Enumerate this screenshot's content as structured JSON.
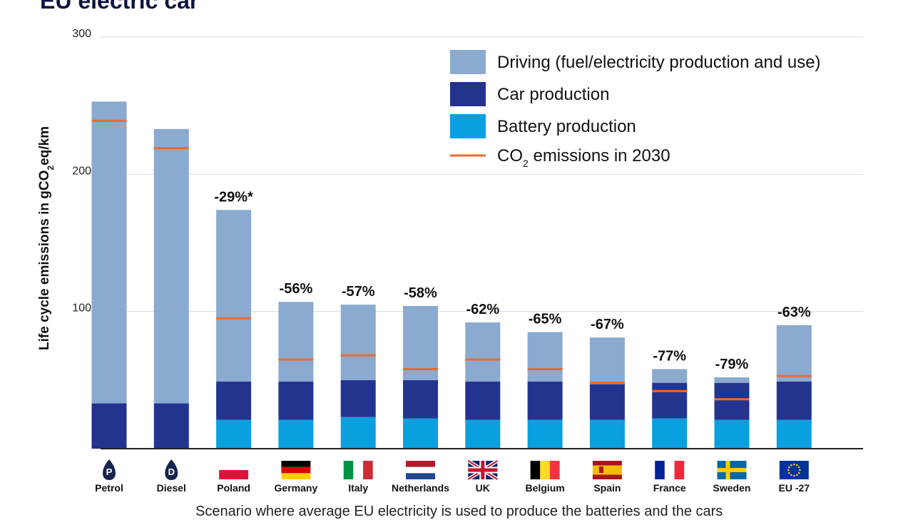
{
  "title": "EU electric car",
  "footnote": "Scenario where average EU electricity is used to produce the batteries and the cars",
  "colors": {
    "driving": "#8aaad0",
    "car_production": "#23348f",
    "battery_production": "#0aa0df",
    "co2_2030": "#ec6a2c",
    "grid": "#d3dbe8",
    "axis": "#222222"
  },
  "legend": [
    {
      "key": "driving",
      "label": "Driving (fuel/electricity production and use)",
      "type": "swatch"
    },
    {
      "key": "car_production",
      "label": "Car production",
      "type": "swatch"
    },
    {
      "key": "battery_production",
      "label": "Battery production",
      "type": "swatch"
    },
    {
      "key": "co2_2030",
      "label_parts": [
        "CO",
        "2",
        " emissions in 2030"
      ],
      "type": "line"
    }
  ],
  "chart_data": {
    "type": "bar",
    "stacked": true,
    "ylabel_parts": [
      "Life  cycle emissions in gCO",
      "2",
      "eq/km"
    ],
    "ylim": [
      0,
      300
    ],
    "yticks": [
      100,
      200,
      300
    ],
    "grid": true,
    "legend_position": "top-right",
    "categories": [
      "Petrol",
      "Diesel",
      "Poland",
      "Germany",
      "Italy",
      "Netherlands",
      "UK",
      "Belgium",
      "Spain",
      "France",
      "Sweden",
      "EU -27"
    ],
    "category_icons": [
      "petrol-pump-icon",
      "diesel-pump-icon",
      "poland-flag-icon",
      "germany-flag-icon",
      "italy-flag-icon",
      "netherlands-flag-icon",
      "uk-flag-icon",
      "belgium-flag-icon",
      "spain-flag-icon",
      "france-flag-icon",
      "sweden-flag-icon",
      "eu-flag-icon"
    ],
    "series": [
      {
        "name": "Battery production",
        "key": "battery_production",
        "values": [
          0,
          0,
          21,
          21,
          23,
          22,
          21,
          21,
          21,
          22,
          21,
          21
        ]
      },
      {
        "name": "Car production",
        "key": "car_production",
        "values": [
          33,
          33,
          28,
          28,
          27,
          28,
          28,
          28,
          26,
          26,
          27,
          28
        ]
      },
      {
        "name": "Driving (fuel/electricity production and use)",
        "key": "driving",
        "values": [
          220,
          200,
          125,
          58,
          55,
          54,
          43,
          36,
          34,
          10,
          4,
          41
        ]
      }
    ],
    "co2_2030": [
      239,
      219,
      95,
      65,
      68,
      58,
      65,
      58,
      48,
      42,
      36,
      53
    ],
    "reduction_labels": [
      "",
      "",
      "-29%*",
      "-56%",
      "-57%",
      "-58%",
      "-62%",
      "-65%",
      "-67%",
      "-77%",
      "-79%",
      "-63%"
    ]
  }
}
